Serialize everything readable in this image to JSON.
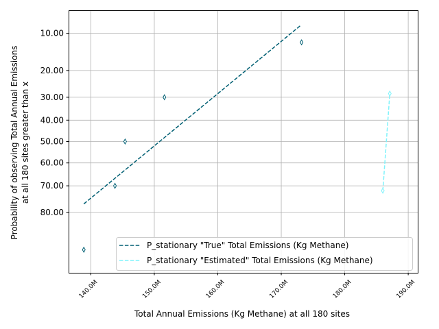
{
  "chart_data": {
    "type": "scatter",
    "xlabel": "Total Annual Emissions (Kg Methane) at all 180 sites",
    "ylabel_lines": [
      "Probability of observing Total Annual Emissions",
      "at all 180 sites greater than x"
    ],
    "x_ticks": [
      {
        "value": 140,
        "label": "140.0M"
      },
      {
        "value": 150,
        "label": "150.0M"
      },
      {
        "value": 160,
        "label": "160.0M"
      },
      {
        "value": 170,
        "label": "170.0M"
      },
      {
        "value": 180,
        "label": "180.0M"
      },
      {
        "value": 190,
        "label": "190.0M"
      }
    ],
    "y_ticks": [
      {
        "value": 10,
        "label": "10.00"
      },
      {
        "value": 20,
        "label": "20.00"
      },
      {
        "value": 30,
        "label": "30.00"
      },
      {
        "value": 40,
        "label": "40.00"
      },
      {
        "value": 50,
        "label": "50.00"
      },
      {
        "value": 60,
        "label": "60.00"
      },
      {
        "value": 70,
        "label": "70.00"
      },
      {
        "value": 80,
        "label": "80.00"
      }
    ],
    "y_scale": "normal-probability",
    "y_inverted": true,
    "grid": true,
    "legend_position": "lower-right",
    "series": [
      {
        "name": "P_stationary \"True\" Total Emissions (Kg Methane)",
        "color": "#005f73",
        "points": [
          {
            "x": 138.9,
            "y": 90.0
          },
          {
            "x": 143.8,
            "y": 70.0
          },
          {
            "x": 145.4,
            "y": 50.0
          },
          {
            "x": 151.6,
            "y": 30.0
          },
          {
            "x": 173.2,
            "y": 12.0
          }
        ],
        "fit": {
          "x": [
            138.9,
            173.0
          ],
          "y": [
            77.0,
            8.5
          ]
        }
      },
      {
        "name": "P_stationary \"Estimated\" Total Emissions (Kg Methane)",
        "color": "#7ff3fb",
        "points": [
          {
            "x": 186.0,
            "y": 72.0
          },
          {
            "x": 187.1,
            "y": 28.5
          }
        ],
        "fit": {
          "x": [
            186.0,
            187.1
          ],
          "y": [
            72.0,
            28.5
          ]
        }
      }
    ]
  }
}
